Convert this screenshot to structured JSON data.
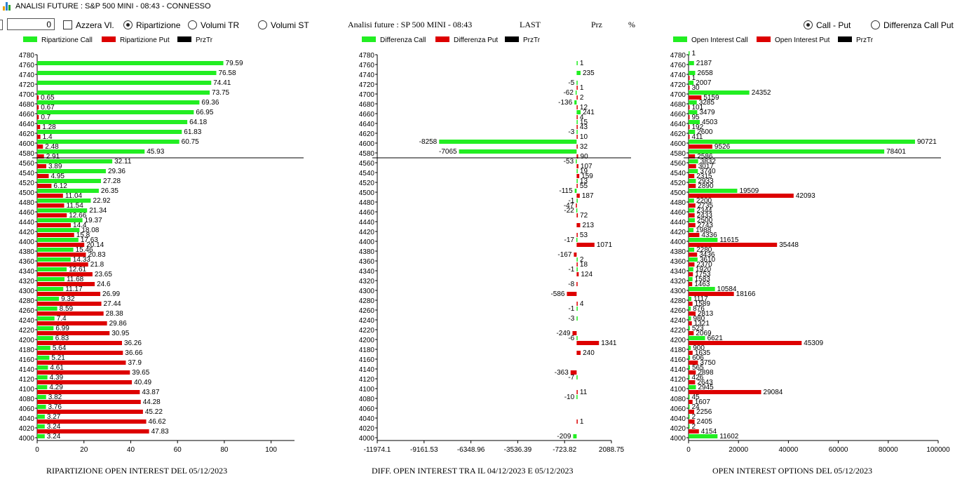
{
  "window": {
    "title": "ANALISI FUTURE : S&P 500 MINI - 08:43 - CONNESSO"
  },
  "controls": {
    "number_value": "0",
    "azzera_label": "Azzera Vl.",
    "radio_ripartizione": "Ripartizione",
    "radio_volumi_tr": "Volumi TR",
    "radio_volumi_st": "Volumi ST",
    "radio_call_put": "Call - Put",
    "radio_diff_call_put": "Differenza Call Put"
  },
  "header": {
    "analisi_title": "Analisi future : SP 500 MINI - 08:43",
    "last_label": "LAST",
    "prz_label": "Prz",
    "pct_label": "%"
  },
  "colors": {
    "call": "#22ee22",
    "put": "#dd0000",
    "prztr": "#000000"
  },
  "strikes": [
    4780,
    4760,
    4740,
    4720,
    4700,
    4680,
    4660,
    4640,
    4620,
    4600,
    4580,
    4560,
    4540,
    4520,
    4500,
    4480,
    4460,
    4440,
    4420,
    4400,
    4380,
    4360,
    4340,
    4320,
    4300,
    4280,
    4260,
    4240,
    4220,
    4200,
    4180,
    4160,
    4140,
    4120,
    4100,
    4080,
    4060,
    4040,
    4020,
    4000
  ],
  "prztr_strike_line": 4570,
  "chart_data": [
    {
      "type": "bar",
      "orientation": "horizontal",
      "caption": "RIPARTIZIONE OPEN INTEREST DEL 05/12/2023",
      "legend": [
        "Ripartizione Call",
        "Ripartizione Put",
        "PrzTr"
      ],
      "xlim": [
        0,
        110
      ],
      "xticks": [
        "0",
        "20",
        "40",
        "60",
        "80",
        "100"
      ],
      "xtick_values": [
        0,
        20,
        40,
        60,
        80,
        100
      ],
      "call": [
        null,
        79.59,
        76.58,
        74.41,
        73.75,
        69.36,
        66.95,
        64.18,
        61.83,
        60.75,
        45.93,
        32.11,
        29.36,
        27.28,
        26.35,
        22.92,
        21.34,
        19.37,
        18.08,
        17.63,
        15.46,
        14.33,
        12.61,
        11.68,
        11.17,
        9.32,
        8.59,
        7.4,
        6.99,
        6.83,
        5.64,
        5.21,
        4.61,
        4.39,
        4.29,
        3.82,
        3.76,
        3.27,
        3.24,
        3.24
      ],
      "put": [
        null,
        null,
        null,
        null,
        0.65,
        0.67,
        0.7,
        1.28,
        1.4,
        2.48,
        2.91,
        3.89,
        4.95,
        6.12,
        11.04,
        11.54,
        12.66,
        14.4,
        15.8,
        20.14,
        20.83,
        21.8,
        23.65,
        24.6,
        26.99,
        27.44,
        28.38,
        29.86,
        30.95,
        36.26,
        36.66,
        37.9,
        39.65,
        40.49,
        43.87,
        44.28,
        45.22,
        46.62,
        47.83,
        null
      ]
    },
    {
      "type": "bar",
      "orientation": "horizontal",
      "caption": "DIFF. OPEN INTEREST TRA IL 04/12/2023 E 05/12/2023",
      "legend": [
        "Differenza Call",
        "Differenza Put",
        "PrzTr"
      ],
      "xlim": [
        -11974.1,
        2088.75
      ],
      "xticks": [
        "-11974.1",
        "-9161.53",
        "-6348.96",
        "-3536.39",
        "-723.82",
        "2088.75"
      ],
      "xtick_values": [
        -11974.1,
        -9161.53,
        -6348.96,
        -3536.39,
        -723.82,
        2088.75
      ],
      "call": [
        null,
        1,
        235,
        -5,
        -62,
        -136,
        241,
        15,
        -3,
        -8258,
        -7065,
        -53,
        19,
        13,
        -115,
        -1,
        -22,
        null,
        null,
        -17,
        null,
        2,
        -1,
        null,
        null,
        null,
        -1,
        -3,
        null,
        -6,
        null,
        null,
        null,
        -7,
        null,
        -10,
        null,
        null,
        null,
        -209
      ],
      "put": [
        null,
        null,
        null,
        1,
        2,
        12,
        4,
        43,
        10,
        32,
        90,
        107,
        159,
        55,
        187,
        -47,
        72,
        213,
        53,
        1071,
        -167,
        18,
        124,
        -8,
        -586,
        4,
        null,
        null,
        -249,
        1341,
        240,
        null,
        -363,
        null,
        11,
        null,
        null,
        1,
        null,
        null
      ]
    },
    {
      "type": "bar",
      "orientation": "horizontal",
      "caption": "OPEN INTEREST OPTIONS DEL 05/12/2023",
      "legend": [
        "Open Interest Call",
        "Open Interest Put",
        "PrzTr"
      ],
      "xlim": [
        0,
        100000
      ],
      "xticks": [
        "0",
        "20000",
        "40000",
        "60000",
        "80000",
        "100000"
      ],
      "xtick_values": [
        0,
        20000,
        40000,
        60000,
        80000,
        100000
      ],
      "call": [
        1,
        2187,
        2658,
        2007,
        24352,
        3285,
        3479,
        4503,
        2600,
        90721,
        78401,
        3832,
        3740,
        2933,
        19509,
        2200,
        2344,
        2500,
        1988,
        11615,
        2280,
        3610,
        1920,
        1583,
        10584,
        1117,
        876,
        980,
        523,
        6621,
        900,
        606,
        565,
        426,
        2945,
        45,
        24,
        2,
        2,
        11602
      ],
      "put": [
        null,
        null,
        1,
        30,
        5159,
        101,
        95,
        192,
        411,
        9526,
        2586,
        3017,
        2315,
        2890,
        42093,
        2735,
        2433,
        2743,
        4336,
        35448,
        3436,
        2370,
        1753,
        1463,
        18166,
        1589,
        2813,
        1321,
        2069,
        45309,
        1635,
        3750,
        2898,
        2643,
        29084,
        1607,
        2256,
        2405,
        4154,
        null
      ]
    }
  ]
}
